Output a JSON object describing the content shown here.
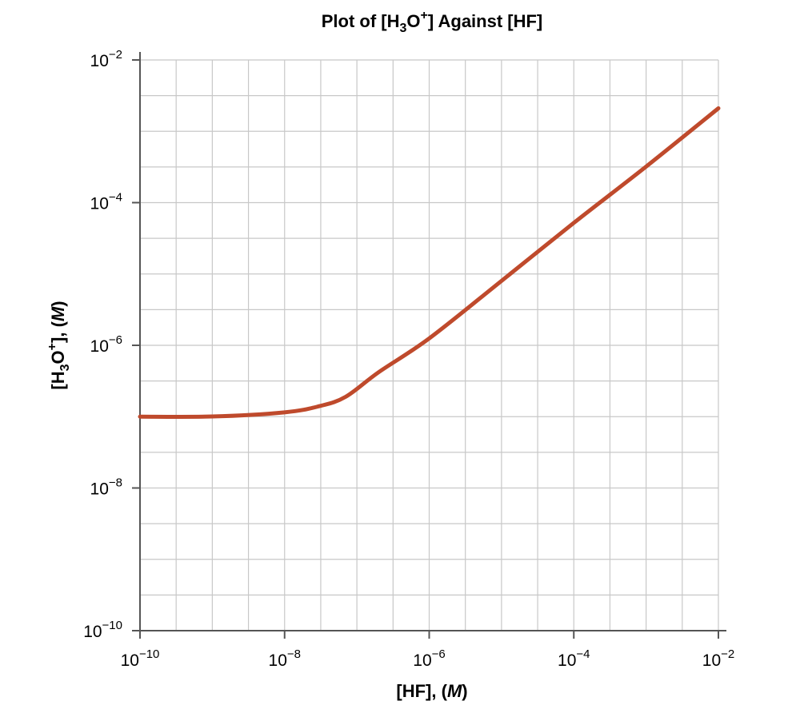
{
  "chart_data": {
    "type": "line",
    "title": {
      "pre": "Plot of [H",
      "sub": "3",
      "mid": "O",
      "sup": "+",
      "post": "] Against [HF]"
    },
    "xlabel": {
      "pre": "[HF], (",
      "italic": "M",
      "post": ")"
    },
    "ylabel": {
      "pre": "[H",
      "sub": "3",
      "mid": "O",
      "sup": "+",
      "post": "], (",
      "italic": "M",
      "close": ")"
    },
    "x_scale": "log",
    "y_scale": "log",
    "xlim": [
      1e-10,
      0.01
    ],
    "ylim": [
      1e-10,
      0.01
    ],
    "x_ticks": [
      {
        "base": "10",
        "exp": "−10"
      },
      {
        "base": "10",
        "exp": "−8"
      },
      {
        "base": "10",
        "exp": "−6"
      },
      {
        "base": "10",
        "exp": "−4"
      },
      {
        "base": "10",
        "exp": "−2"
      }
    ],
    "y_ticks": [
      {
        "base": "10",
        "exp": "−10"
      },
      {
        "base": "10",
        "exp": "−8"
      },
      {
        "base": "10",
        "exp": "−6"
      },
      {
        "base": "10",
        "exp": "−4"
      },
      {
        "base": "10",
        "exp": "−2"
      }
    ],
    "grid": true,
    "series": [
      {
        "color": "#bf4a2c",
        "x": [
          1e-10,
          1e-09,
          1e-08,
          3e-08,
          7e-08,
          2e-07,
          1e-06,
          1e-05,
          0.0001,
          0.001,
          0.01
        ],
        "y": [
          1e-07,
          1.005e-07,
          1.15e-07,
          1.4e-07,
          1.9e-07,
          4.2e-07,
          1.25e-06,
          8e-06,
          5.2e-05,
          0.00032,
          0.0021
        ]
      }
    ]
  }
}
